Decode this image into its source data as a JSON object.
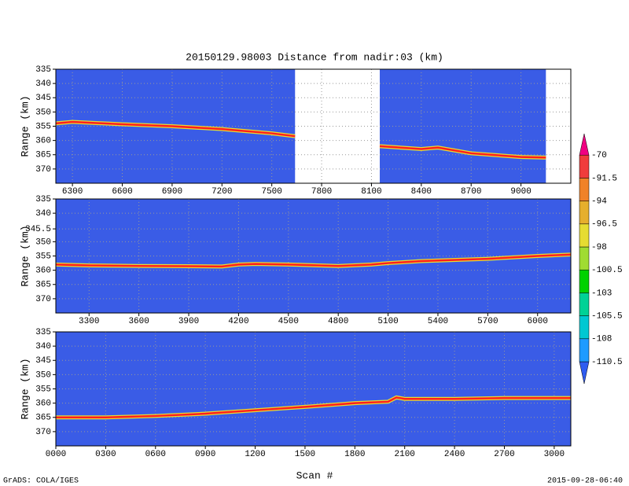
{
  "title": "20150129.98003    Distance from nadir:03 (km)",
  "xlabel": "Scan #",
  "footer": {
    "left": "GrADS: COLA/IGES",
    "right": "2015-09-28-06:40"
  },
  "colorbar": {
    "levels": [
      -110.5,
      -108,
      -105.5,
      -103,
      -100.5,
      -98,
      -96.5,
      -94,
      -91.5,
      -70
    ],
    "colors": [
      "#2f5cf0",
      "#1e9bff",
      "#00c8d2",
      "#00d296",
      "#00d200",
      "#a0dc32",
      "#e6dc32",
      "#e6af2d",
      "#f08228",
      "#f03c3c",
      "#f00082"
    ]
  },
  "chart_data": [
    {
      "type": "line",
      "ylabel": "Range (km)",
      "background": "#3a5ce6",
      "grid": true,
      "xlim": [
        6200,
        9300
      ],
      "ylim": [
        375,
        335
      ],
      "coverage": [
        [
          6200,
          7640
        ],
        [
          8150,
          9150
        ]
      ],
      "xticks": [
        6300,
        6600,
        6900,
        7200,
        7500,
        7800,
        8100,
        8400,
        8700,
        9000
      ],
      "yticks": [
        335,
        340,
        345,
        350,
        355,
        360,
        365,
        370
      ],
      "series": [
        {
          "color": "#ff1e1e",
          "x": [
            6200,
            6300,
            6600,
            6900,
            7200,
            7500,
            7640,
            7900,
            8150,
            8400,
            8500,
            8700,
            9000,
            9150
          ],
          "values": [
            354,
            353.5,
            354.3,
            355,
            356,
            357.5,
            358.5,
            null,
            362,
            363,
            362.5,
            364.5,
            365.8,
            366
          ]
        }
      ]
    },
    {
      "type": "line",
      "ylabel": "Range (km)",
      "background": "#3a5ce6",
      "grid": true,
      "xlim": [
        3100,
        6200
      ],
      "ylim": [
        375,
        335
      ],
      "coverage": [
        [
          3100,
          6200
        ]
      ],
      "xticks": [
        3300,
        3600,
        3900,
        4200,
        4500,
        4800,
        5100,
        5400,
        5700,
        6000
      ],
      "yticks": [
        335,
        340,
        345.5,
        350,
        355,
        360,
        365,
        370
      ],
      "series": [
        {
          "color": "#ff1e1e",
          "x": [
            3100,
            3300,
            3600,
            3900,
            4100,
            4200,
            4300,
            4500,
            4800,
            5000,
            5100,
            5300,
            5700,
            6000,
            6200
          ],
          "values": [
            358,
            358.3,
            358.5,
            358.6,
            358.7,
            358,
            357.8,
            358,
            358.5,
            358,
            357.5,
            356.8,
            356,
            355,
            354.5
          ]
        }
      ]
    },
    {
      "type": "line",
      "ylabel": "Range (km)",
      "background": "#3a5ce6",
      "grid": true,
      "xlim": [
        0,
        3100
      ],
      "ylim": [
        375,
        335
      ],
      "coverage": [
        [
          0,
          3100
        ]
      ],
      "xticks": [
        {
          "value": 0,
          "label": "0000"
        },
        {
          "value": 300,
          "label": "0300"
        },
        {
          "value": 600,
          "label": "0600"
        },
        {
          "value": 900,
          "label": "0900"
        },
        1200,
        1500,
        1800,
        2100,
        2400,
        2700,
        3000
      ],
      "yticks": [
        335,
        340,
        345,
        350,
        355,
        360,
        365,
        370
      ],
      "series": [
        {
          "color": "#ff1e1e",
          "x": [
            0,
            300,
            600,
            900,
            1200,
            1500,
            1800,
            2000,
            2050,
            2100,
            2400,
            2700,
            3000,
            3100
          ],
          "values": [
            365,
            365,
            364.5,
            363.7,
            362.5,
            361.3,
            360,
            359.5,
            358,
            358.5,
            358.5,
            358.2,
            358.2,
            358.2
          ]
        }
      ]
    }
  ]
}
